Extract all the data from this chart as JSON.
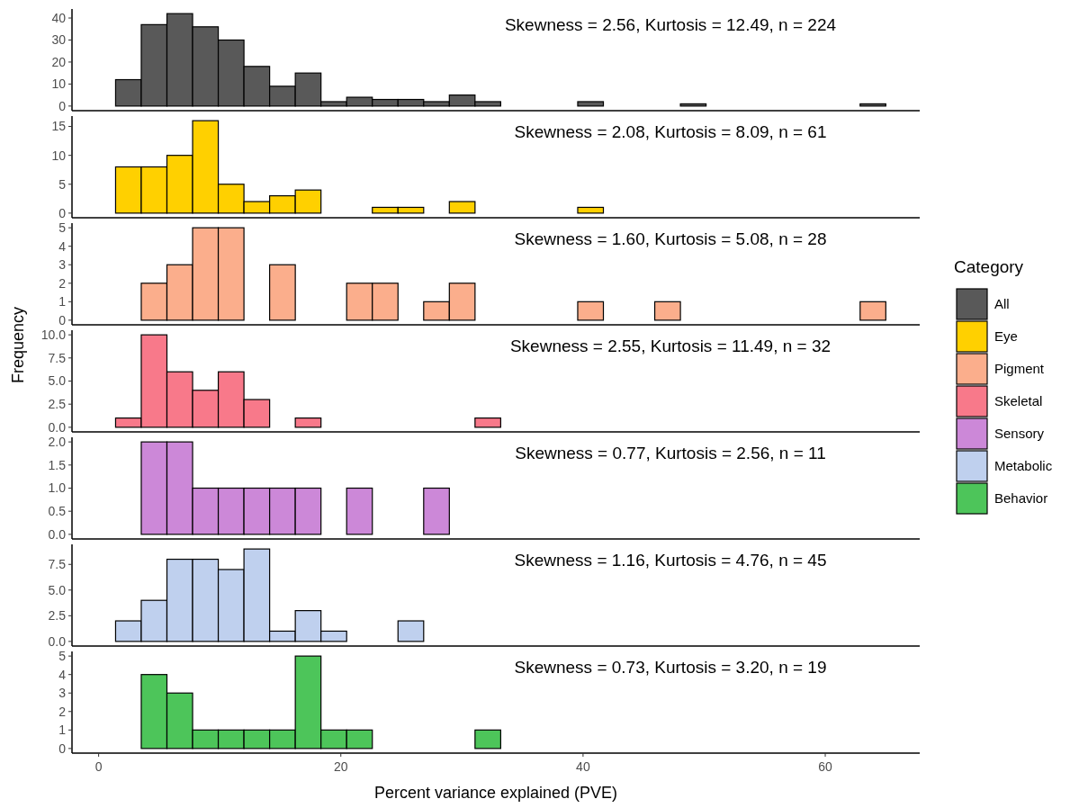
{
  "chart_data": [
    {
      "type": "histogram",
      "legend_title": "Category",
      "legend": "right",
      "tick_labels": "y",
      "annotations": [
        "Skewness = 2.56, Kurtosis = 12.49, n = 224"
      ],
      "xlim": [
        -2.2,
        67.8
      ],
      "xticks": [
        0,
        20,
        40,
        60
      ],
      "ylim": [
        -2.1,
        44.1
      ],
      "yticks": [
        0,
        10,
        20,
        30,
        40
      ],
      "bins": [
        1.4,
        3.52,
        5.64,
        7.76,
        9.88,
        12,
        14.12,
        16.24,
        18.36,
        20.48,
        22.6,
        24.72,
        26.84,
        28.96,
        31.08,
        33.2,
        35.32,
        37.44,
        39.56,
        41.68,
        43.8,
        45.92,
        48.04,
        50.16,
        52.28,
        54.4,
        56.52,
        58.64,
        60.76,
        62.88,
        65
      ],
      "series": [
        {
          "name": "All",
          "color": "#595959",
          "values": [
            12,
            37,
            42,
            36,
            30,
            18,
            9,
            15,
            2,
            4,
            3,
            3,
            2,
            5,
            2,
            0,
            0,
            0,
            2,
            0,
            0,
            0,
            1,
            0,
            0,
            0,
            0,
            0,
            0,
            1
          ]
        }
      ]
    },
    {
      "type": "histogram",
      "legend": "right",
      "tick_labels": "y",
      "annotations": [
        "Skewness = 2.08, Kurtosis = 8.09, n = 61"
      ],
      "xlim": [
        -2.2,
        67.8
      ],
      "xticks": [
        0,
        20,
        40,
        60
      ],
      "ylim": [
        -0.8,
        16.8
      ],
      "yticks": [
        0,
        5,
        10,
        15
      ],
      "bins": [
        1.4,
        3.52,
        5.64,
        7.76,
        9.88,
        12,
        14.12,
        16.24,
        18.36,
        20.48,
        22.6,
        24.72,
        26.84,
        28.96,
        31.08,
        33.2,
        35.32,
        37.44,
        39.56,
        41.68,
        43.8,
        45.92,
        48.04,
        50.16,
        52.28,
        54.4,
        56.52,
        58.64,
        60.76,
        62.88,
        65
      ],
      "series": [
        {
          "name": "Eye",
          "color": "#ffd000",
          "values": [
            8,
            8,
            10,
            16,
            5,
            2,
            3,
            4,
            0,
            0,
            1,
            1,
            0,
            2,
            0,
            0,
            0,
            0,
            1,
            0,
            0,
            0,
            0,
            0,
            0,
            0,
            0,
            0,
            0,
            0
          ]
        }
      ]
    },
    {
      "type": "histogram",
      "legend": "right",
      "tick_labels": "y",
      "annotations": [
        "Skewness = 1.60, Kurtosis = 5.08, n = 28"
      ],
      "xlim": [
        -2.2,
        67.8
      ],
      "xticks": [
        0,
        20,
        40,
        60
      ],
      "ylim": [
        -0.25,
        5.25
      ],
      "yticks": [
        0,
        1,
        2,
        3,
        4,
        5
      ],
      "bins": [
        1.4,
        3.52,
        5.64,
        7.76,
        9.88,
        12,
        14.12,
        16.24,
        18.36,
        20.48,
        22.6,
        24.72,
        26.84,
        28.96,
        31.08,
        33.2,
        35.32,
        37.44,
        39.56,
        41.68,
        43.8,
        45.92,
        48.04,
        50.16,
        52.28,
        54.4,
        56.52,
        58.64,
        60.76,
        62.88,
        65
      ],
      "series": [
        {
          "name": "Pigment",
          "color": "#fbae8c",
          "values": [
            0,
            2,
            3,
            5,
            5,
            0,
            3,
            0,
            0,
            2,
            2,
            0,
            1,
            2,
            0,
            0,
            0,
            0,
            1,
            0,
            0,
            1,
            0,
            0,
            0,
            0,
            0,
            0,
            0,
            1
          ]
        }
      ]
    },
    {
      "type": "histogram",
      "legend": "right",
      "tick_labels": "y",
      "ylabel": "Frequency",
      "annotations": [
        "Skewness = 2.55, Kurtosis = 11.49, n = 32"
      ],
      "xlim": [
        -2.2,
        67.8
      ],
      "xticks": [
        0,
        20,
        40,
        60
      ],
      "ylim": [
        -0.5,
        10.5
      ],
      "yticks": [
        {
          "value": 0,
          "label": "0.0"
        },
        {
          "value": 2.5,
          "label": "2.5"
        },
        {
          "value": 5,
          "label": "5.0"
        },
        {
          "value": 7.5,
          "label": "7.5"
        },
        {
          "value": 10,
          "label": "10.0"
        }
      ],
      "bins": [
        1.4,
        3.52,
        5.64,
        7.76,
        9.88,
        12,
        14.12,
        16.24,
        18.36,
        20.48,
        22.6,
        24.72,
        26.84,
        28.96,
        31.08,
        33.2,
        35.32,
        37.44,
        39.56,
        41.68,
        43.8,
        45.92,
        48.04,
        50.16,
        52.28,
        54.4,
        56.52,
        58.64,
        60.76,
        62.88,
        65
      ],
      "series": [
        {
          "name": "Skeletal",
          "color": "#f8798a",
          "values": [
            1,
            10,
            6,
            4,
            6,
            3,
            0,
            1,
            0,
            0,
            0,
            0,
            0,
            0,
            1,
            0,
            0,
            0,
            0,
            0,
            0,
            0,
            0,
            0,
            0,
            0,
            0,
            0,
            0,
            0
          ]
        }
      ]
    },
    {
      "type": "histogram",
      "legend": "right",
      "tick_labels": "y",
      "annotations": [
        "Skewness = 0.77, Kurtosis = 2.56, n = 11"
      ],
      "xlim": [
        -2.2,
        67.8
      ],
      "xticks": [
        0,
        20,
        40,
        60
      ],
      "ylim": [
        -0.1,
        2.1
      ],
      "yticks": [
        {
          "value": 0,
          "label": "0.0"
        },
        {
          "value": 0.5,
          "label": "0.5"
        },
        {
          "value": 1,
          "label": "1.0"
        },
        {
          "value": 1.5,
          "label": "1.5"
        },
        {
          "value": 2,
          "label": "2.0"
        }
      ],
      "bins": [
        1.4,
        3.52,
        5.64,
        7.76,
        9.88,
        12,
        14.12,
        16.24,
        18.36,
        20.48,
        22.6,
        24.72,
        26.84,
        28.96,
        31.08,
        33.2,
        35.32,
        37.44,
        39.56,
        41.68,
        43.8,
        45.92,
        48.04,
        50.16,
        52.28,
        54.4,
        56.52,
        58.64,
        60.76,
        62.88,
        65
      ],
      "series": [
        {
          "name": "Sensory",
          "color": "#cc88d8",
          "values": [
            0,
            2,
            2,
            1,
            1,
            1,
            1,
            1,
            0,
            1,
            0,
            0,
            1,
            0,
            0,
            0,
            0,
            0,
            0,
            0,
            0,
            0,
            0,
            0,
            0,
            0,
            0,
            0,
            0,
            0
          ]
        }
      ]
    },
    {
      "type": "histogram",
      "legend": "right",
      "tick_labels": "y",
      "annotations": [
        "Skewness = 1.16, Kurtosis = 4.76, n = 45"
      ],
      "xlim": [
        -2.2,
        67.8
      ],
      "xticks": [
        0,
        20,
        40,
        60
      ],
      "ylim": [
        -0.45,
        9.45
      ],
      "yticks": [
        {
          "value": 0,
          "label": "0.0"
        },
        {
          "value": 2.5,
          "label": "2.5"
        },
        {
          "value": 5,
          "label": "5.0"
        },
        {
          "value": 7.5,
          "label": "7.5"
        }
      ],
      "bins": [
        1.4,
        3.52,
        5.64,
        7.76,
        9.88,
        12,
        14.12,
        16.24,
        18.36,
        20.48,
        22.6,
        24.72,
        26.84,
        28.96,
        31.08,
        33.2,
        35.32,
        37.44,
        39.56,
        41.68,
        43.8,
        45.92,
        48.04,
        50.16,
        52.28,
        54.4,
        56.52,
        58.64,
        60.76,
        62.88,
        65
      ],
      "series": [
        {
          "name": "Metabolic",
          "color": "#bfd0ee",
          "values": [
            2,
            4,
            8,
            8,
            7,
            9,
            1,
            3,
            1,
            0,
            0,
            2,
            0,
            0,
            0,
            0,
            0,
            0,
            0,
            0,
            0,
            0,
            0,
            0,
            0,
            0,
            0,
            0,
            0,
            0
          ]
        }
      ]
    },
    {
      "type": "histogram",
      "legend": "right",
      "xlabel": "Percent variance explained (PVE)",
      "annotations": [
        "Skewness = 0.73, Kurtosis = 3.20, n = 19"
      ],
      "xlim": [
        -2.2,
        67.8
      ],
      "xticks": [
        0,
        20,
        40,
        60
      ],
      "ylim": [
        -0.25,
        5.25
      ],
      "yticks": [
        0,
        1,
        2,
        3,
        4,
        5
      ],
      "bins": [
        1.4,
        3.52,
        5.64,
        7.76,
        9.88,
        12,
        14.12,
        16.24,
        18.36,
        20.48,
        22.6,
        24.72,
        26.84,
        28.96,
        31.08,
        33.2,
        35.32,
        37.44,
        39.56,
        41.68,
        43.8,
        45.92,
        48.04,
        50.16,
        52.28,
        54.4,
        56.52,
        58.64,
        60.76,
        62.88,
        65
      ],
      "series": [
        {
          "name": "Behavior",
          "color": "#4dc55a",
          "values": [
            0,
            4,
            3,
            1,
            1,
            1,
            1,
            5,
            1,
            1,
            0,
            0,
            0,
            0,
            1,
            0,
            0,
            0,
            0,
            0,
            0,
            0,
            0,
            0,
            0,
            0,
            0,
            0,
            0,
            0
          ]
        }
      ]
    }
  ]
}
